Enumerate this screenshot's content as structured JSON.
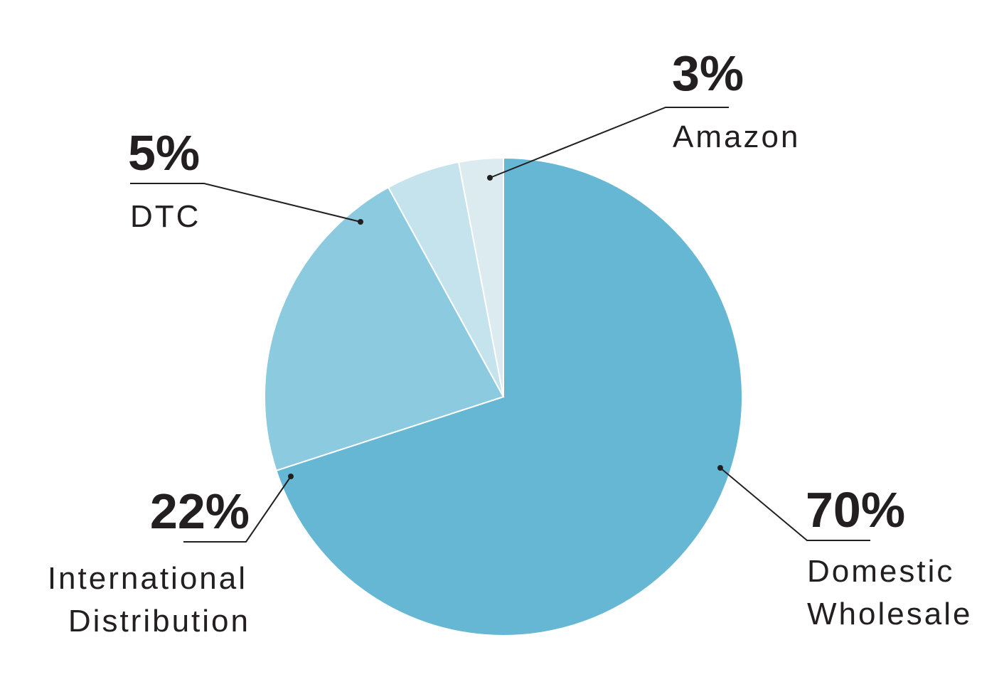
{
  "chart_data": {
    "type": "pie",
    "start_angle_deg": 0,
    "direction": "clockwise",
    "slices": [
      {
        "label_lines": [
          "Domestic",
          "Wholesale"
        ],
        "value": 70,
        "value_label": "70%",
        "color": "#65b7d3"
      },
      {
        "label_lines": [
          "International",
          "Distribution"
        ],
        "value": 22,
        "value_label": "22%",
        "color": "#8ccadf"
      },
      {
        "label_lines": [
          "DTC"
        ],
        "value": 5,
        "value_label": "5%",
        "color": "#c5e3ed"
      },
      {
        "label_lines": [
          "Amazon"
        ],
        "value": 3,
        "value_label": "3%",
        "color": "#dcebef"
      }
    ],
    "legend": "none",
    "text_color": "#231f20"
  }
}
